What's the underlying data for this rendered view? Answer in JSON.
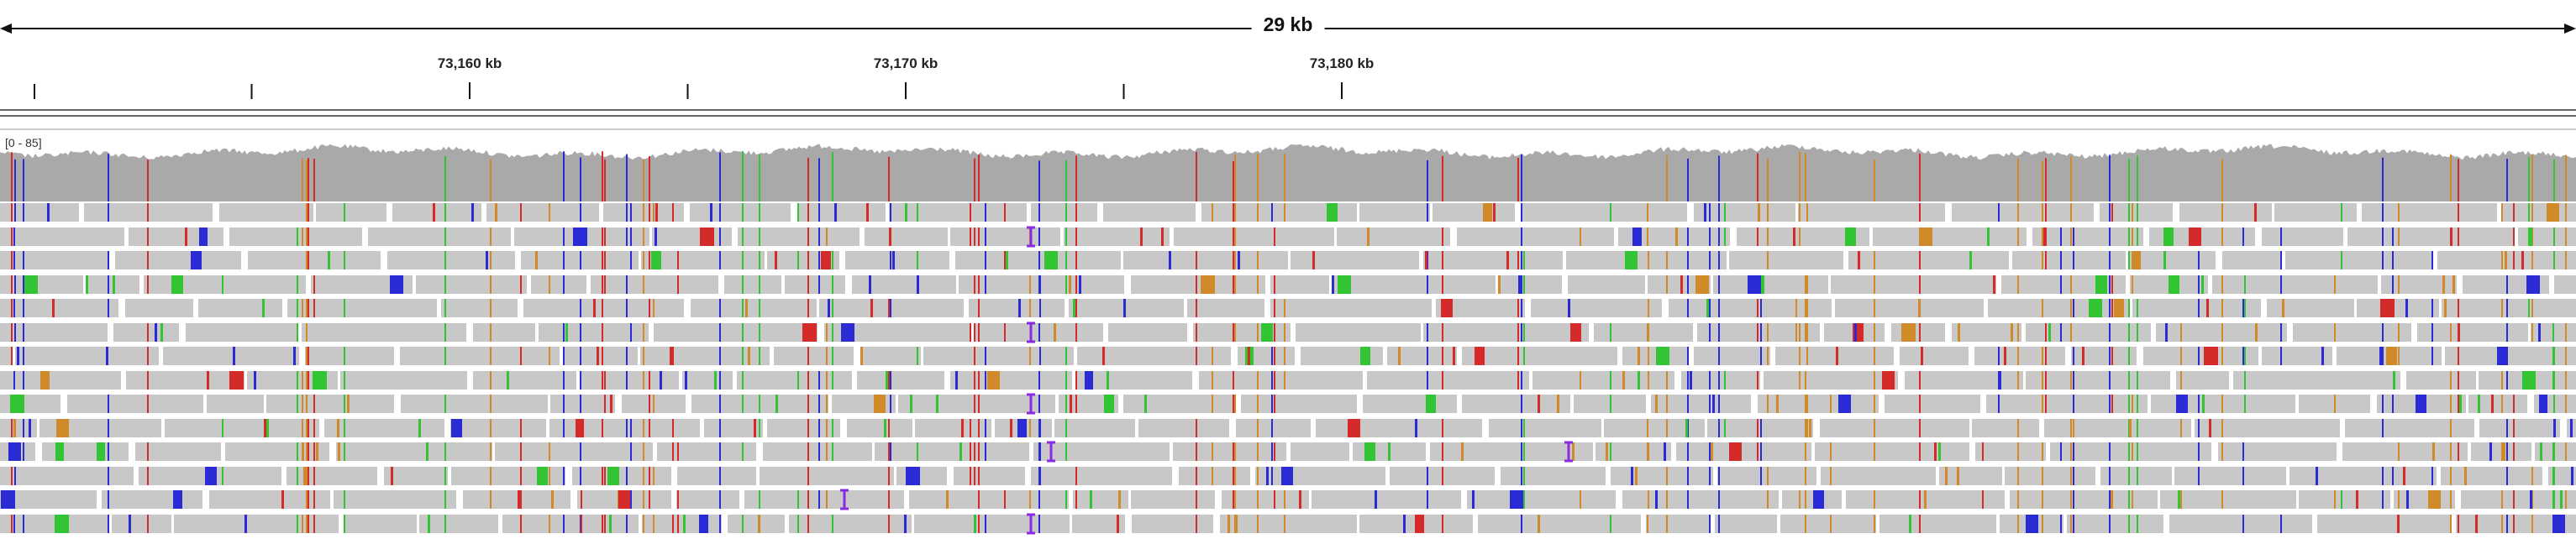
{
  "header": {
    "span_label": "29 kb"
  },
  "ruler": {
    "ticks": [
      {
        "label": "73,160 kb",
        "kb": 73160
      },
      {
        "label": "73,170 kb",
        "kb": 73170
      },
      {
        "label": "73,180 kb",
        "kb": 73180
      }
    ]
  },
  "coverage": {
    "range_label": "[0 - 85]"
  },
  "colors": {
    "read": "#c8c8c8",
    "coverage": "#a9a9a9",
    "mismatch_A": "#33c433",
    "mismatch_C": "#2b2bd6",
    "mismatch_G": "#d08a2a",
    "mismatch_T": "#d42a2a",
    "insertion": "#8a2be2"
  },
  "icons": {
    "left_arrow": "arrow-left-icon",
    "right_arrow": "arrow-right-icon"
  }
}
